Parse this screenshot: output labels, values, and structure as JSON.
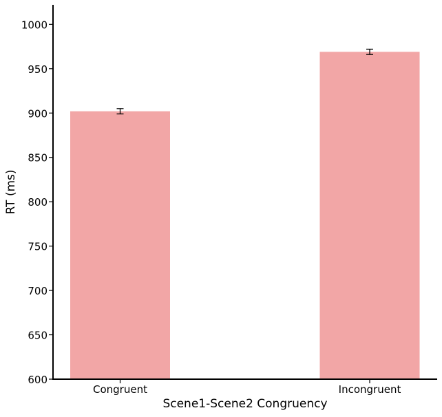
{
  "chart_data": {
    "type": "bar",
    "categories": [
      "Congruent",
      "Incongruent"
    ],
    "values": [
      902,
      969
    ],
    "error": [
      3,
      3
    ],
    "xlabel": "Scene1-Scene2 Congruency",
    "ylabel": "RT (ms)",
    "ylim": [
      600,
      1022
    ],
    "yticks": [
      600,
      650,
      700,
      750,
      800,
      850,
      900,
      950,
      1000
    ],
    "grid": false,
    "colors": {
      "bar": "#f2a6a6",
      "error": "#000000",
      "axis": "#000000"
    }
  }
}
